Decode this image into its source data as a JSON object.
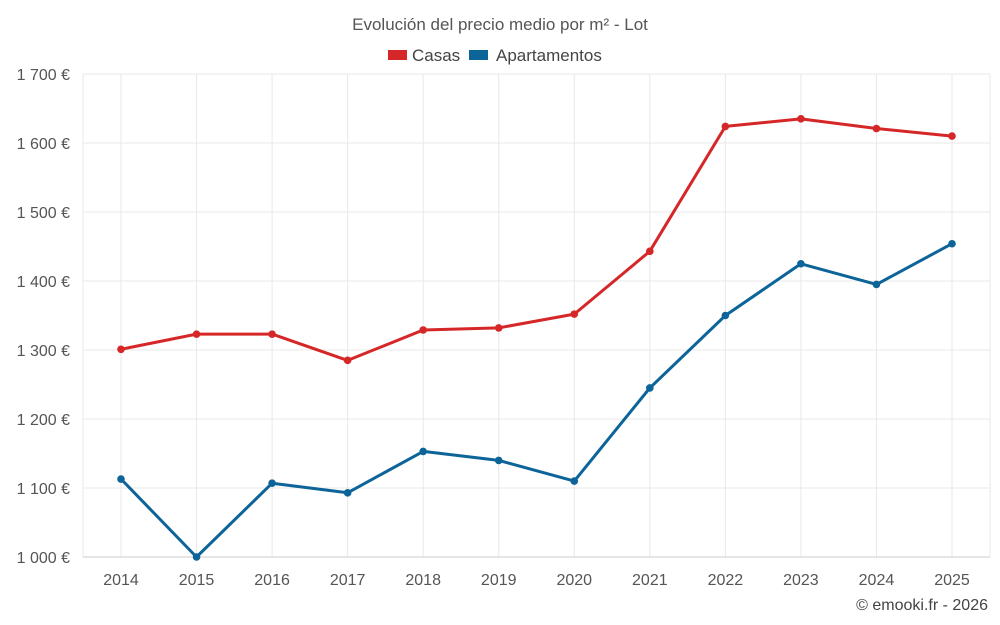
{
  "chart_data": {
    "type": "line",
    "title": "Evolución del precio medio por m² - Lot",
    "categories": [
      "2014",
      "2015",
      "2016",
      "2017",
      "2018",
      "2019",
      "2020",
      "2021",
      "2022",
      "2023",
      "2024",
      "2025"
    ],
    "series": [
      {
        "name": "Casas",
        "color": "#d62728",
        "values": [
          1301,
          1323,
          1323,
          1285,
          1329,
          1332,
          1352,
          1443,
          1624,
          1635,
          1621,
          1610
        ]
      },
      {
        "name": "Apartamentos",
        "color": "#0c6499",
        "values": [
          1113,
          1000,
          1107,
          1093,
          1153,
          1140,
          1110,
          1245,
          1350,
          1425,
          1395,
          1454
        ]
      }
    ],
    "ylim": [
      1000,
      1700
    ],
    "yticks": [
      1000,
      1100,
      1200,
      1300,
      1400,
      1500,
      1600,
      1700
    ],
    "ytick_labels": [
      "1 000 €",
      "1 100 €",
      "1 200 €",
      "1 300 €",
      "1 400 €",
      "1 500 €",
      "1 600 €",
      "1 700 €"
    ],
    "grid": true,
    "legend_position": "top-center"
  },
  "credit": "© emooki.fr - 2026"
}
